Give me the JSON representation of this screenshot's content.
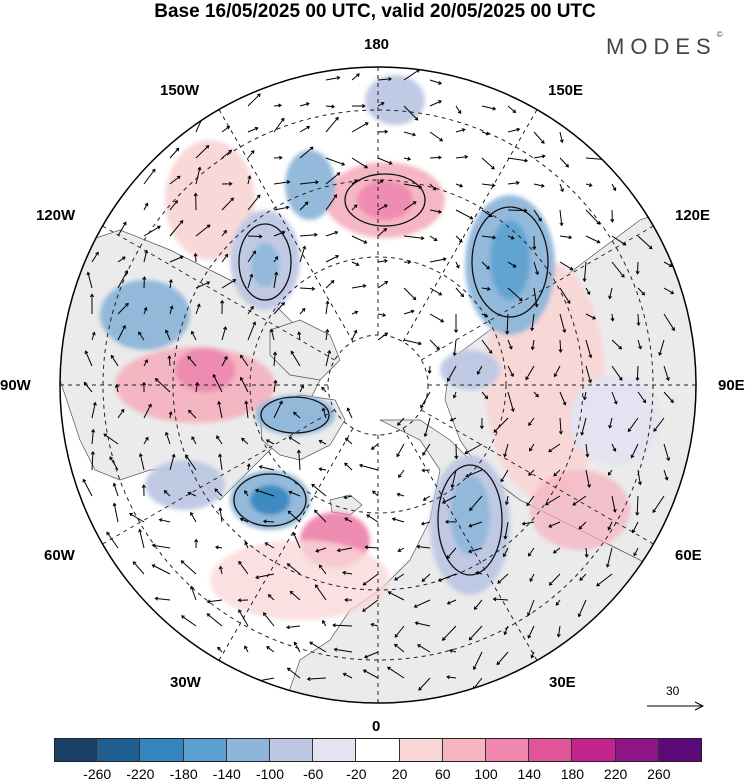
{
  "header": {
    "title": "Base 16/05/2025 00 UTC, valid 20/05/2025 00 UTC",
    "brand": "MODES",
    "brand_mark": "©"
  },
  "map": {
    "projection": "north-polar-stereographic",
    "longitude_labels": [
      "180",
      "150E",
      "120E",
      "90E",
      "60E",
      "30E",
      "0",
      "30W",
      "60W",
      "90W",
      "120W",
      "150W"
    ],
    "land_color": "#ebebeb",
    "ocean_color": "#ffffff"
  },
  "reference_vector": {
    "label": "30"
  },
  "colorbar": {
    "ticks": [
      "-260",
      "-220",
      "-180",
      "-140",
      "-100",
      "-60",
      "-20",
      "20",
      "60",
      "100",
      "140",
      "180",
      "220",
      "260"
    ],
    "colors": [
      "#1b3f66",
      "#1f5f8f",
      "#3385bf",
      "#5aa0cf",
      "#8eb6da",
      "#bdc8e4",
      "#e3e3f2",
      "#ffffff",
      "#f9d6d6",
      "#f5b4c0",
      "#ef86ad",
      "#e25499",
      "#c2238c",
      "#8e1585",
      "#5c0a79"
    ]
  }
}
